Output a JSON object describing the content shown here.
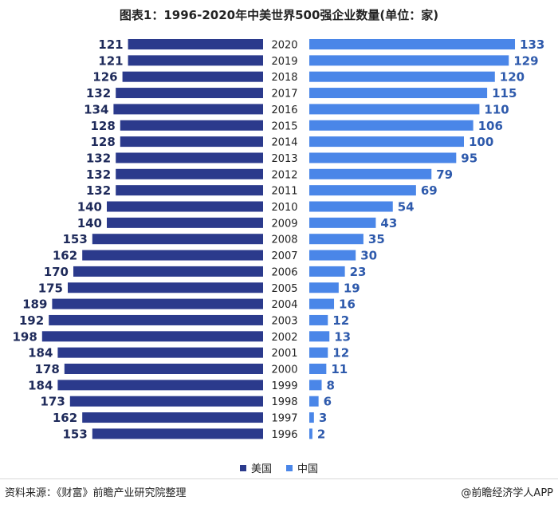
{
  "title": "图表1：1996-2020年中美世界500强企业数量(单位：家)",
  "source": "资料来源：《财富》前瞻产业研究院整理",
  "brand": "@前瞻经济学人APP",
  "colors": {
    "usa": "#2B3A8C",
    "china": "#4A86E8",
    "label_usa": "#1E2A5A",
    "label_china": "#2E5AAC"
  },
  "legend": [
    {
      "name": "美国",
      "color": "#2B3A8C"
    },
    {
      "name": "中国",
      "color": "#4A86E8"
    }
  ],
  "chart_data": {
    "type": "bar",
    "orientation": "horizontal-butterfly",
    "categories": [
      "2020",
      "2019",
      "2018",
      "2017",
      "2016",
      "2015",
      "2014",
      "2013",
      "2012",
      "2011",
      "2010",
      "2009",
      "2008",
      "2007",
      "2006",
      "2005",
      "2004",
      "2003",
      "2002",
      "2001",
      "2000",
      "1999",
      "1998",
      "1997",
      "1996"
    ],
    "series": [
      {
        "name": "美国",
        "values": [
          121,
          121,
          126,
          132,
          134,
          128,
          128,
          132,
          132,
          132,
          140,
          140,
          153,
          162,
          170,
          175,
          189,
          192,
          198,
          184,
          178,
          184,
          173,
          162,
          153
        ]
      },
      {
        "name": "中国",
        "values": [
          133,
          129,
          120,
          115,
          110,
          106,
          100,
          95,
          79,
          69,
          54,
          43,
          35,
          30,
          23,
          19,
          16,
          12,
          13,
          12,
          11,
          8,
          6,
          3,
          2
        ]
      }
    ],
    "legend_position": "bottom",
    "grid": false
  }
}
